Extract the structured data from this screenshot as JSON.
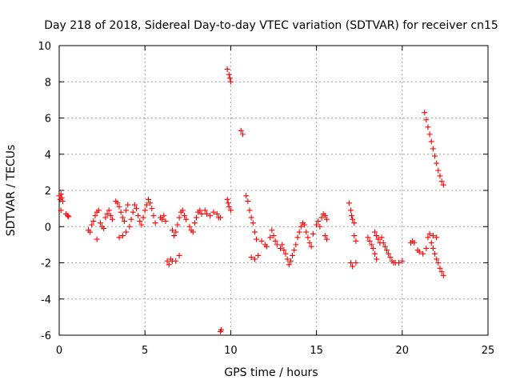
{
  "chart_data": {
    "type": "scatter",
    "title": "Day 218 of 2018, Sidereal Day-to-day VTEC variation (SDTVAR) for receiver cn15",
    "xlabel": "GPS time / hours",
    "ylabel": "SDTVAR / TECUs",
    "xlim": [
      0,
      25
    ],
    "ylim": [
      -6,
      10
    ],
    "x_ticks": [
      0,
      5,
      10,
      15,
      20,
      25
    ],
    "y_ticks": [
      -6,
      -4,
      -2,
      0,
      2,
      4,
      6,
      8,
      10
    ],
    "grid": true,
    "marker": "plus",
    "marker_color": "#ff0000",
    "series": [
      {
        "name": "SDTVAR",
        "points": [
          [
            0.0,
            1.7
          ],
          [
            0.05,
            1.5
          ],
          [
            0.1,
            1.8
          ],
          [
            0.15,
            1.6
          ],
          [
            0.2,
            1.4
          ],
          [
            0.1,
            0.9
          ],
          [
            0.4,
            0.7
          ],
          [
            0.5,
            0.6
          ],
          [
            0.55,
            0.55
          ],
          [
            1.7,
            -0.2
          ],
          [
            1.8,
            -0.3
          ],
          [
            1.9,
            0.1
          ],
          [
            2.0,
            0.3
          ],
          [
            2.1,
            0.6
          ],
          [
            2.2,
            0.8
          ],
          [
            2.3,
            0.9
          ],
          [
            2.2,
            -0.7
          ],
          [
            2.4,
            0.2
          ],
          [
            2.5,
            0.0
          ],
          [
            2.6,
            -0.1
          ],
          [
            2.7,
            0.5
          ],
          [
            2.8,
            0.7
          ],
          [
            2.9,
            0.9
          ],
          [
            3.0,
            0.6
          ],
          [
            3.1,
            0.4
          ],
          [
            3.3,
            1.4
          ],
          [
            3.4,
            1.3
          ],
          [
            3.5,
            1.1
          ],
          [
            3.6,
            0.8
          ],
          [
            3.7,
            0.5
          ],
          [
            3.8,
            0.3
          ],
          [
            3.9,
            0.9
          ],
          [
            4.0,
            1.2
          ],
          [
            3.5,
            -0.6
          ],
          [
            3.7,
            -0.5
          ],
          [
            3.9,
            -0.3
          ],
          [
            4.1,
            0.0
          ],
          [
            4.2,
            0.4
          ],
          [
            4.3,
            0.8
          ],
          [
            4.4,
            1.2
          ],
          [
            4.5,
            1.0
          ],
          [
            4.6,
            0.6
          ],
          [
            4.7,
            0.3
          ],
          [
            4.8,
            0.1
          ],
          [
            4.9,
            0.5
          ],
          [
            5.0,
            0.9
          ],
          [
            5.1,
            1.2
          ],
          [
            5.2,
            1.5
          ],
          [
            5.3,
            1.3
          ],
          [
            5.4,
            1.0
          ],
          [
            5.5,
            0.6
          ],
          [
            5.6,
            0.2
          ],
          [
            5.9,
            0.5
          ],
          [
            6.0,
            0.4
          ],
          [
            6.1,
            0.6
          ],
          [
            6.2,
            0.3
          ],
          [
            6.3,
            -1.9
          ],
          [
            6.4,
            -2.1
          ],
          [
            6.5,
            -1.8
          ],
          [
            6.6,
            -0.2
          ],
          [
            6.7,
            -0.5
          ],
          [
            6.8,
            -0.3
          ],
          [
            6.9,
            0.1
          ],
          [
            7.0,
            0.5
          ],
          [
            7.0,
            -1.6
          ],
          [
            6.8,
            -1.9
          ],
          [
            6.6,
            -1.9
          ],
          [
            7.1,
            0.8
          ],
          [
            7.2,
            0.9
          ],
          [
            7.3,
            0.6
          ],
          [
            7.4,
            0.4
          ],
          [
            7.6,
            0.0
          ],
          [
            7.7,
            -0.2
          ],
          [
            7.8,
            -0.3
          ],
          [
            7.9,
            0.2
          ],
          [
            8.0,
            0.5
          ],
          [
            8.1,
            0.8
          ],
          [
            8.2,
            0.9
          ],
          [
            8.3,
            0.7
          ],
          [
            8.5,
            0.9
          ],
          [
            8.6,
            0.7
          ],
          [
            8.8,
            0.6
          ],
          [
            9.0,
            0.8
          ],
          [
            9.2,
            0.7
          ],
          [
            9.3,
            0.5
          ],
          [
            9.4,
            0.5
          ],
          [
            9.4,
            -5.8
          ],
          [
            9.45,
            -5.7
          ],
          [
            9.8,
            8.7
          ],
          [
            9.9,
            8.4
          ],
          [
            9.95,
            8.2
          ],
          [
            10.0,
            8.0
          ],
          [
            9.8,
            1.5
          ],
          [
            9.85,
            1.3
          ],
          [
            9.9,
            1.1
          ],
          [
            10.0,
            0.9
          ],
          [
            10.6,
            5.3
          ],
          [
            10.7,
            5.1
          ],
          [
            10.9,
            1.7
          ],
          [
            11.0,
            1.4
          ],
          [
            11.1,
            0.9
          ],
          [
            11.2,
            0.5
          ],
          [
            11.3,
            0.2
          ],
          [
            11.4,
            -0.3
          ],
          [
            11.5,
            -0.7
          ],
          [
            11.2,
            -1.7
          ],
          [
            11.4,
            -1.8
          ],
          [
            11.6,
            -1.6
          ],
          [
            11.8,
            -0.8
          ],
          [
            12.0,
            -1.0
          ],
          [
            12.1,
            -1.1
          ],
          [
            12.3,
            -0.6
          ],
          [
            12.4,
            -0.2
          ],
          [
            12.5,
            -0.5
          ],
          [
            12.6,
            -0.8
          ],
          [
            12.7,
            -1.0
          ],
          [
            12.9,
            -1.2
          ],
          [
            13.0,
            -1.0
          ],
          [
            13.1,
            -1.3
          ],
          [
            13.2,
            -1.5
          ],
          [
            13.3,
            -1.8
          ],
          [
            13.4,
            -2.1
          ],
          [
            13.5,
            -1.9
          ],
          [
            13.6,
            -1.6
          ],
          [
            13.7,
            -1.3
          ],
          [
            13.8,
            -1.0
          ],
          [
            13.9,
            -0.6
          ],
          [
            14.0,
            -0.3
          ],
          [
            14.1,
            0.0
          ],
          [
            14.2,
            0.2
          ],
          [
            14.3,
            0.1
          ],
          [
            14.4,
            -0.3
          ],
          [
            14.5,
            -0.6
          ],
          [
            14.6,
            -0.9
          ],
          [
            14.7,
            -1.1
          ],
          [
            14.8,
            -0.4
          ],
          [
            15.0,
            0.1
          ],
          [
            15.1,
            0.3
          ],
          [
            15.2,
            0.0
          ],
          [
            15.3,
            0.5
          ],
          [
            15.4,
            0.7
          ],
          [
            15.5,
            0.6
          ],
          [
            15.6,
            0.4
          ],
          [
            15.5,
            -0.5
          ],
          [
            15.6,
            -0.7
          ],
          [
            16.9,
            1.3
          ],
          [
            17.0,
            0.9
          ],
          [
            17.05,
            0.6
          ],
          [
            17.1,
            0.4
          ],
          [
            17.2,
            0.2
          ],
          [
            17.0,
            -2.0
          ],
          [
            17.1,
            -2.2
          ],
          [
            17.3,
            -2.0
          ],
          [
            17.2,
            -0.5
          ],
          [
            17.3,
            -0.8
          ],
          [
            18.0,
            -0.6
          ],
          [
            18.1,
            -0.8
          ],
          [
            18.2,
            -1.0
          ],
          [
            18.3,
            -1.2
          ],
          [
            18.4,
            -1.5
          ],
          [
            18.5,
            -1.8
          ],
          [
            18.4,
            -0.3
          ],
          [
            18.5,
            -0.5
          ],
          [
            18.6,
            -0.7
          ],
          [
            18.7,
            -0.9
          ],
          [
            18.8,
            -0.6
          ],
          [
            18.9,
            -0.9
          ],
          [
            19.0,
            -1.1
          ],
          [
            19.1,
            -1.3
          ],
          [
            19.2,
            -1.5
          ],
          [
            19.3,
            -1.7
          ],
          [
            19.4,
            -1.9
          ],
          [
            19.5,
            -2.0
          ],
          [
            19.6,
            -2.0
          ],
          [
            19.8,
            -2.0
          ],
          [
            20.0,
            -1.9
          ],
          [
            20.5,
            -0.9
          ],
          [
            20.6,
            -0.8
          ],
          [
            20.7,
            -0.9
          ],
          [
            20.9,
            -1.3
          ],
          [
            21.0,
            -1.4
          ],
          [
            21.2,
            -1.5
          ],
          [
            21.4,
            -1.2
          ],
          [
            21.5,
            -0.6
          ],
          [
            21.7,
            -0.9
          ],
          [
            21.8,
            -1.2
          ],
          [
            21.9,
            -1.5
          ],
          [
            22.0,
            -1.8
          ],
          [
            22.1,
            -2.0
          ],
          [
            22.2,
            -2.3
          ],
          [
            22.3,
            -2.5
          ],
          [
            22.4,
            -2.7
          ],
          [
            21.6,
            -0.4
          ],
          [
            21.8,
            -0.5
          ],
          [
            22.0,
            -0.6
          ],
          [
            21.3,
            6.3
          ],
          [
            21.4,
            5.9
          ],
          [
            21.5,
            5.5
          ],
          [
            21.6,
            5.1
          ],
          [
            21.7,
            4.7
          ],
          [
            21.8,
            4.3
          ],
          [
            21.9,
            3.9
          ],
          [
            22.0,
            3.5
          ],
          [
            22.1,
            3.1
          ],
          [
            22.2,
            2.8
          ],
          [
            22.3,
            2.5
          ],
          [
            22.4,
            2.3
          ]
        ]
      }
    ]
  }
}
